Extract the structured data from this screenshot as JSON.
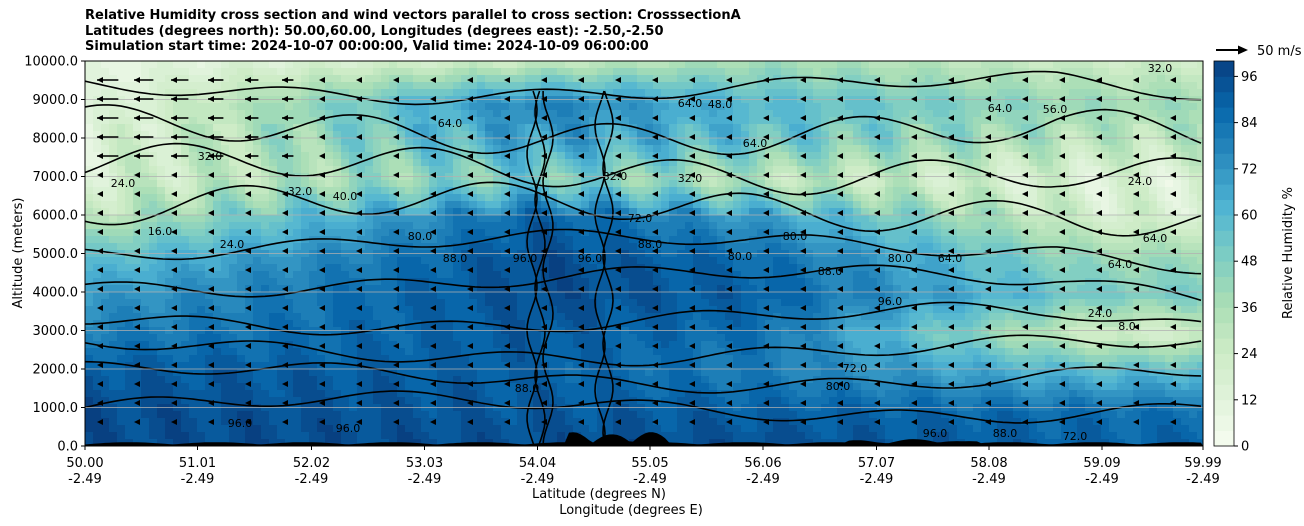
{
  "chart_data": {
    "type": "heatmap",
    "title_lines": [
      "Relative Humidity cross section and wind vectors parallel to cross section: CrosssectionA",
      "Latitudes (degrees north): 50.00,60.00, Longitudes (degrees east): -2.50,-2.50",
      "Simulation start time: 2024-10-07 00:00:00, Valid time: 2024-10-09 06:00:00"
    ],
    "xlabel_line1": "Latitude (degrees N)",
    "xlabel_line2": "Longitude (degrees E)",
    "ylabel": "Altitude (meters)",
    "x_ticks": [
      {
        "lat": "50.00",
        "lon": "-2.49"
      },
      {
        "lat": "51.01",
        "lon": "-2.49"
      },
      {
        "lat": "52.02",
        "lon": "-2.49"
      },
      {
        "lat": "53.03",
        "lon": "-2.49"
      },
      {
        "lat": "54.04",
        "lon": "-2.49"
      },
      {
        "lat": "55.05",
        "lon": "-2.49"
      },
      {
        "lat": "56.06",
        "lon": "-2.49"
      },
      {
        "lat": "57.07",
        "lon": "-2.49"
      },
      {
        "lat": "58.08",
        "lon": "-2.49"
      },
      {
        "lat": "59.09",
        "lon": "-2.49"
      },
      {
        "lat": "59.99",
        "lon": "-2.49"
      }
    ],
    "y_ticks": [
      "0.0",
      "1000.0",
      "2000.0",
      "3000.0",
      "4000.0",
      "5000.0",
      "6000.0",
      "7000.0",
      "8000.0",
      "9000.0",
      "10000.0"
    ],
    "ylim": [
      0,
      10000
    ],
    "grid": "horizontal",
    "colorbar": {
      "label": "Relative Humidity %",
      "ticks": [
        "0",
        "12",
        "24",
        "36",
        "48",
        "60",
        "72",
        "84",
        "96"
      ],
      "range": [
        0,
        100
      ],
      "colormap": "GnBu",
      "levels": 25
    },
    "wind_vector_key": "50 m/s",
    "contour_labels": [
      "8.0",
      "16.0",
      "24.0",
      "32.0",
      "40.0",
      "48.0",
      "56.0",
      "64.0",
      "72.0",
      "80.0",
      "88.0",
      "96.0"
    ],
    "humidity_profile": {
      "altitudes": [
        0,
        1000,
        2000,
        3000,
        4000,
        5000,
        6000,
        7000,
        8000,
        9000,
        10000
      ],
      "lat_50_00": [
        96,
        96,
        92,
        80,
        70,
        55,
        30,
        20,
        15,
        10,
        8
      ],
      "lat_54_04": [
        96,
        92,
        90,
        92,
        96,
        96,
        90,
        50,
        70,
        80,
        30
      ],
      "lat_56_06": [
        96,
        90,
        80,
        84,
        90,
        85,
        70,
        30,
        55,
        60,
        40
      ],
      "lat_59_09": [
        90,
        85,
        60,
        20,
        50,
        40,
        20,
        15,
        30,
        40,
        25
      ]
    }
  }
}
